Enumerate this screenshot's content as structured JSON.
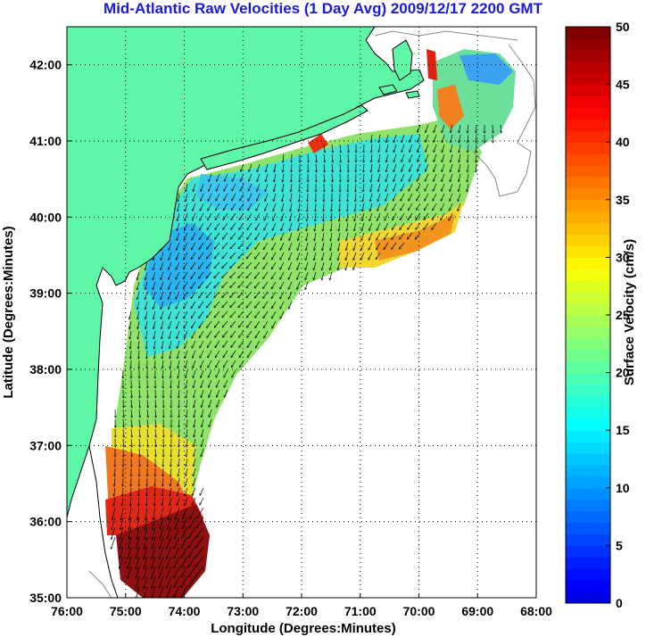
{
  "title": "Mid-Atlantic Raw Velocities (1 Day Avg) 2009/12/17 2200 GMT",
  "xlabel": "Longitude (Degrees:Minutes)",
  "ylabel": "Latitude (Degrees:Minutes)",
  "colorbar": {
    "label": "Surface Velocity (cm/s)",
    "ticks": [
      "0",
      "5",
      "10",
      "15",
      "20",
      "25",
      "30",
      "35",
      "40",
      "45",
      "50"
    ],
    "min": 0,
    "max": 50
  },
  "map": {
    "lon_range": [
      -76,
      -68
    ],
    "lat_range": [
      35,
      42.5
    ],
    "xticks": [
      "76:00",
      "75:00",
      "74:00",
      "73:00",
      "72:00",
      "71:00",
      "70:00",
      "69:00",
      "68:00"
    ],
    "yticks": [
      "35:00",
      "36:00",
      "37:00",
      "38:00",
      "39:00",
      "40:00",
      "41:00",
      "42:00"
    ],
    "grid": true,
    "land_color": "#5ff6a8"
  }
}
